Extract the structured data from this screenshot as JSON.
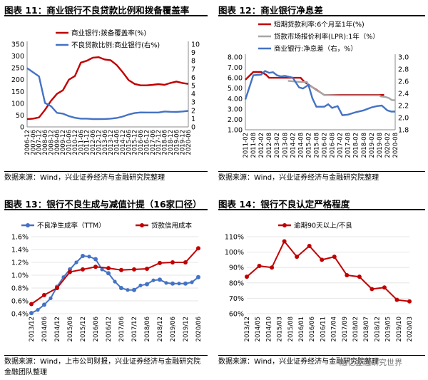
{
  "panels": [
    {
      "title": "图表 11：商业银行不良贷款比例和拨备覆盖率",
      "source": "数据来源：Wind，兴业证券经济与金融研究院整理",
      "source2": ""
    },
    {
      "title": "图表 12：商业银行净息差",
      "source": "数据来源：Wind，兴业证券经济与金融研究院整理",
      "source2": ""
    },
    {
      "title": "图表 13：银行不良生成与减值计提（16家口径）",
      "source": "数据来源：Wind，上市公司财报，兴业证券经济与金融研究院",
      "source2": "金融团队整理"
    },
    {
      "title": "图表 14：银行不良认定严格程度",
      "source": "数据来源：Wind，兴业证券经济与金融研究院整理",
      "source2": ""
    }
  ],
  "watermark": "融亿金融研究世界",
  "chart_data": [
    {
      "type": "line",
      "title": "图表 11：商业银行不良贷款比例和拨备覆盖率",
      "x": [
        "2006-12",
        "2007-06",
        "2007-12",
        "2008-06",
        "2008-12",
        "2009-06",
        "2009-12",
        "2010-06",
        "2010-12",
        "2011-06",
        "2011-12",
        "2012-06",
        "2012-12",
        "2013-06",
        "2013-12",
        "2014-06",
        "2014-12",
        "2015-06",
        "2015-12",
        "2016-06",
        "2016-12",
        "2017-06",
        "2017-12",
        "2018-06",
        "2018-12",
        "2019-06",
        "2019-12",
        "2020-06"
      ],
      "tick_labels": [
        "2006-12",
        "2007-06",
        "2007-12",
        "2008-06",
        "2008-12",
        "2009-06",
        "2009-12",
        "2010-06",
        "2010-12",
        "2011-06",
        "2011-12",
        "2012-06",
        "2012-12",
        "2013-06",
        "2013-12",
        "2014-06",
        "2014-12",
        "2015-06",
        "2015-12",
        "2016-06",
        "2016-12",
        "2017-06",
        "2017-12",
        "2018-06",
        "2018-12",
        "2019-06",
        "2019-12",
        "2020-06"
      ],
      "series": [
        {
          "name": "商业银行:拨备覆盖率(%)",
          "axis": "left",
          "color": "#c00000",
          "values": [
            33,
            35,
            40,
            72,
            110,
            140,
            155,
            200,
            215,
            272,
            280,
            293,
            295,
            285,
            282,
            262,
            232,
            198,
            182,
            176,
            176,
            178,
            181,
            178,
            186,
            192,
            186,
            182
          ]
        },
        {
          "name": "不良贷款比例:商业银行(右%)",
          "axis": "right",
          "color": "#4472c4",
          "values": [
            7.1,
            6.6,
            6.1,
            2.9,
            2.5,
            1.7,
            1.6,
            1.3,
            1.1,
            1.0,
            1.0,
            0.95,
            0.95,
            0.96,
            1.0,
            1.08,
            1.25,
            1.5,
            1.67,
            1.75,
            1.74,
            1.74,
            1.74,
            1.86,
            1.83,
            1.81,
            1.86,
            1.94
          ]
        }
      ],
      "yleft": {
        "min": 0,
        "max": 350,
        "ticks": [
          0,
          50,
          100,
          150,
          200,
          250,
          300,
          350
        ]
      },
      "yright": {
        "min": 0,
        "max": 10,
        "ticks": [
          0,
          1,
          2,
          3,
          4,
          5,
          6,
          7,
          8,
          9,
          10
        ]
      }
    },
    {
      "type": "line",
      "title": "图表 12：商业银行净息差",
      "x": [
        "2011-02",
        "2011-08",
        "2012-02",
        "2012-08",
        "2013-02",
        "2013-08",
        "2014-02",
        "2014-08",
        "2015-02",
        "2015-08",
        "2016-02",
        "2016-08",
        "2017-02",
        "2017-08",
        "2018-02",
        "2018-08",
        "2019-02",
        "2019-08",
        "2020-02",
        "2020-08"
      ],
      "tick_labels": [
        "2011-02",
        "2011-08",
        "2012-02",
        "2012-08",
        "2013-02",
        "2013-08",
        "2014-02",
        "2014-08",
        "2015-02",
        "2015-08",
        "2016-02",
        "2016-08",
        "2017-02",
        "2017-08",
        "2018-02",
        "2018-08",
        "2019-02",
        "2019-08",
        "2020-02",
        "2020-08"
      ],
      "series": [
        {
          "name": "短期贷款利率:6个月至1年(%)",
          "axis": "left",
          "color": "#c00000",
          "points": [
            [
              0,
              5.81
            ],
            [
              1,
              6.56
            ],
            [
              2,
              6.56
            ],
            [
              2.6,
              6.31
            ],
            [
              3,
              6.0
            ],
            [
              4,
              6.0
            ],
            [
              5,
              6.0
            ],
            [
              6,
              6.0
            ],
            [
              7,
              6.0
            ],
            [
              7.5,
              5.6
            ],
            [
              8,
              5.35
            ],
            [
              8.5,
              5.1
            ],
            [
              9,
              4.85
            ],
            [
              9.5,
              4.6
            ],
            [
              10,
              4.35
            ],
            [
              12,
              4.35
            ],
            [
              14,
              4.35
            ],
            [
              16,
              4.35
            ],
            [
              17.6,
              4.35
            ]
          ]
        },
        {
          "name": "贷款市场报价利率(LPR):1年（%）",
          "axis": "left",
          "color": "#a6a6a6",
          "points": [
            [
              5.4,
              5.71
            ],
            [
              7,
              5.6
            ],
            [
              7.8,
              5.6
            ],
            [
              8,
              5.3
            ],
            [
              8.5,
              5.1
            ],
            [
              9,
              4.8
            ],
            [
              9.5,
              4.6
            ],
            [
              10,
              4.35
            ],
            [
              12,
              4.31
            ],
            [
              14,
              4.31
            ],
            [
              16,
              4.31
            ],
            [
              17,
              4.31
            ],
            [
              17.2,
              4.2
            ],
            [
              17.8,
              4.15
            ],
            [
              18.2,
              4.05
            ],
            [
              18.6,
              3.85
            ],
            [
              19,
              3.85
            ]
          ]
        },
        {
          "name": "商业银行:净息差（右，%）",
          "axis": "right",
          "color": "#4472c4",
          "points": [
            [
              0,
              2.3
            ],
            [
              1,
              2.7
            ],
            [
              2,
              2.71
            ],
            [
              2.5,
              2.77
            ],
            [
              3,
              2.74
            ],
            [
              3.5,
              2.75
            ],
            [
              4,
              2.7
            ],
            [
              4.5,
              2.68
            ],
            [
              5,
              2.69
            ],
            [
              6,
              2.66
            ],
            [
              6.8,
              2.5
            ],
            [
              7.3,
              2.48
            ],
            [
              8,
              2.54
            ],
            [
              8.5,
              2.32
            ],
            [
              9,
              2.18
            ],
            [
              10,
              2.18
            ],
            [
              10.5,
              2.22
            ],
            [
              11,
              2.16
            ],
            [
              11.7,
              2.19
            ],
            [
              12.3,
              2.04
            ],
            [
              13,
              2.05
            ],
            [
              14,
              2.09
            ],
            [
              15,
              2.12
            ],
            [
              16,
              2.17
            ],
            [
              16.7,
              2.19
            ],
            [
              17.3,
              2.2
            ],
            [
              18,
              2.12
            ],
            [
              18.5,
              2.1
            ],
            [
              19,
              2.1
            ]
          ]
        }
      ],
      "yleft": {
        "min": 1.0,
        "max": 8.0,
        "ticks": [
          1.0,
          2.0,
          3.0,
          4.0,
          5.0,
          6.0,
          7.0,
          8.0
        ]
      },
      "yright": {
        "min": 1.8,
        "max": 3.0,
        "ticks": [
          1.8,
          2.0,
          2.2,
          2.4,
          2.6,
          2.8,
          3.0
        ]
      }
    },
    {
      "type": "line",
      "title": "图表 13：银行不良生成与减值计提（16家口径）",
      "x": [
        "2013/12",
        "2014/06",
        "2014/12",
        "2015/06",
        "2015/12",
        "2016/06",
        "2016/12",
        "2017/06",
        "2017/12",
        "2018/06",
        "2018/12",
        "2019/06",
        "2019/12",
        "2020/06"
      ],
      "tick_labels": [
        "2013/12",
        "2014/06",
        "2014/12",
        "2015/06",
        "2015/12",
        "2016/06",
        "2016/12",
        "2017/06",
        "2017/12",
        "2018/06",
        "2018/12",
        "2019/06",
        "2019/12",
        "2020/06"
      ],
      "series": [
        {
          "name": "不良净生成率（TTM）",
          "color": "#4472c4",
          "marker": true,
          "points": [
            [
              0,
              0.41
            ],
            [
              0.5,
              0.46
            ],
            [
              1,
              0.54
            ],
            [
              1.5,
              0.64
            ],
            [
              2,
              0.82
            ],
            [
              2.5,
              0.97
            ],
            [
              3,
              1.09
            ],
            [
              3.5,
              1.2
            ],
            [
              4,
              1.3
            ],
            [
              4.5,
              1.29
            ],
            [
              5,
              1.25
            ],
            [
              5.5,
              1.09
            ],
            [
              6,
              1.03
            ],
            [
              6.5,
              0.9
            ],
            [
              7,
              0.8
            ],
            [
              7.5,
              0.77
            ],
            [
              8,
              0.77
            ],
            [
              8.5,
              0.84
            ],
            [
              9,
              0.86
            ],
            [
              9.5,
              0.92
            ],
            [
              10,
              0.93
            ],
            [
              10.5,
              0.88
            ],
            [
              11,
              0.87
            ],
            [
              11.5,
              0.87
            ],
            [
              12,
              0.87
            ],
            [
              12.5,
              0.89
            ],
            [
              13,
              0.97
            ]
          ]
        },
        {
          "name": "贷款信用成本",
          "color": "#c00000",
          "marker": true,
          "points": [
            [
              0,
              0.55
            ],
            [
              1,
              0.69
            ],
            [
              2,
              0.8
            ],
            [
              3,
              1.05
            ],
            [
              4,
              1.09
            ],
            [
              5,
              1.13
            ],
            [
              6,
              1.11
            ],
            [
              7,
              1.08
            ],
            [
              8,
              1.09
            ],
            [
              9,
              1.1
            ],
            [
              10,
              1.19
            ],
            [
              11,
              1.2
            ],
            [
              12,
              1.2
            ],
            [
              13,
              1.42
            ]
          ]
        }
      ],
      "yleft": {
        "min": 0.4,
        "max": 1.6,
        "ticks": [
          "0.4%",
          "0.6%",
          "0.8%",
          "1.0%",
          "1.2%",
          "1.4%",
          "1.6%"
        ]
      }
    },
    {
      "type": "line",
      "title": "图表 14：银行不良认定严格程度",
      "x": [
        "2013/12",
        "2014/05",
        "2014/10",
        "2015/03",
        "2015/08",
        "2016/01",
        "2016/06",
        "2016/11",
        "2017/04",
        "2017/09",
        "2018/02",
        "2018/07",
        "2018/12",
        "2019/05",
        "2019/10",
        "2020/03"
      ],
      "tick_labels": [
        "2013/12",
        "2014/05",
        "2014/10",
        "2015/03",
        "2015/08",
        "2016/01",
        "2016/06",
        "2016/11",
        "2017/04",
        "2017/09",
        "2018/02",
        "2018/07",
        "2018/12",
        "2019/05",
        "2019/10",
        "2020/03"
      ],
      "series": [
        {
          "name": "逾期90天以上/不良",
          "color": "#c00000",
          "marker": true,
          "points": [
            [
              0,
              84
            ],
            [
              1,
              91
            ],
            [
              2,
              90
            ],
            [
              3,
              107
            ],
            [
              4,
              97
            ],
            [
              5,
              104
            ],
            [
              6,
              95
            ],
            [
              7,
              97
            ],
            [
              8,
              85
            ],
            [
              9,
              84
            ],
            [
              10,
              76
            ],
            [
              11,
              77
            ],
            [
              12,
              69
            ],
            [
              13,
              68
            ]
          ]
        }
      ],
      "yleft": {
        "min": 60,
        "max": 110,
        "ticks": [
          "60%",
          "70%",
          "80%",
          "90%",
          "100%",
          "110%"
        ]
      }
    }
  ]
}
